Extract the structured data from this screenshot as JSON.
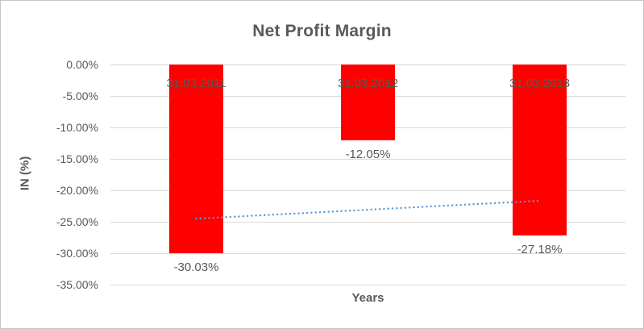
{
  "chart_data": {
    "type": "bar",
    "title": "Net Profit Margin",
    "xlabel": "Years",
    "ylabel": "IN (%)",
    "categories": [
      "31.03.2011",
      "31.03.2012",
      "31.03.2013"
    ],
    "values": [
      -30.03,
      -12.05,
      -27.18
    ],
    "data_labels": [
      "-30.03%",
      "-12.05%",
      "-27.18%"
    ],
    "y_ticks": [
      "0.00%",
      "-5.00%",
      "-10.00%",
      "-15.00%",
      "-20.00%",
      "-25.00%",
      "-30.00%",
      "-35.00%"
    ],
    "y_tick_values": [
      0,
      -5,
      -10,
      -15,
      -20,
      -25,
      -30,
      -35
    ],
    "ylim": [
      -35,
      0
    ],
    "grid": true,
    "legend": "none",
    "bar_color": "#ff0000",
    "text_color": "#595959",
    "gridline_color": "#d9d9d9",
    "trendline": {
      "type": "linear",
      "style": "dotted",
      "color": "#5b9bd5",
      "start_value": -24.51,
      "end_value": -21.66
    }
  }
}
